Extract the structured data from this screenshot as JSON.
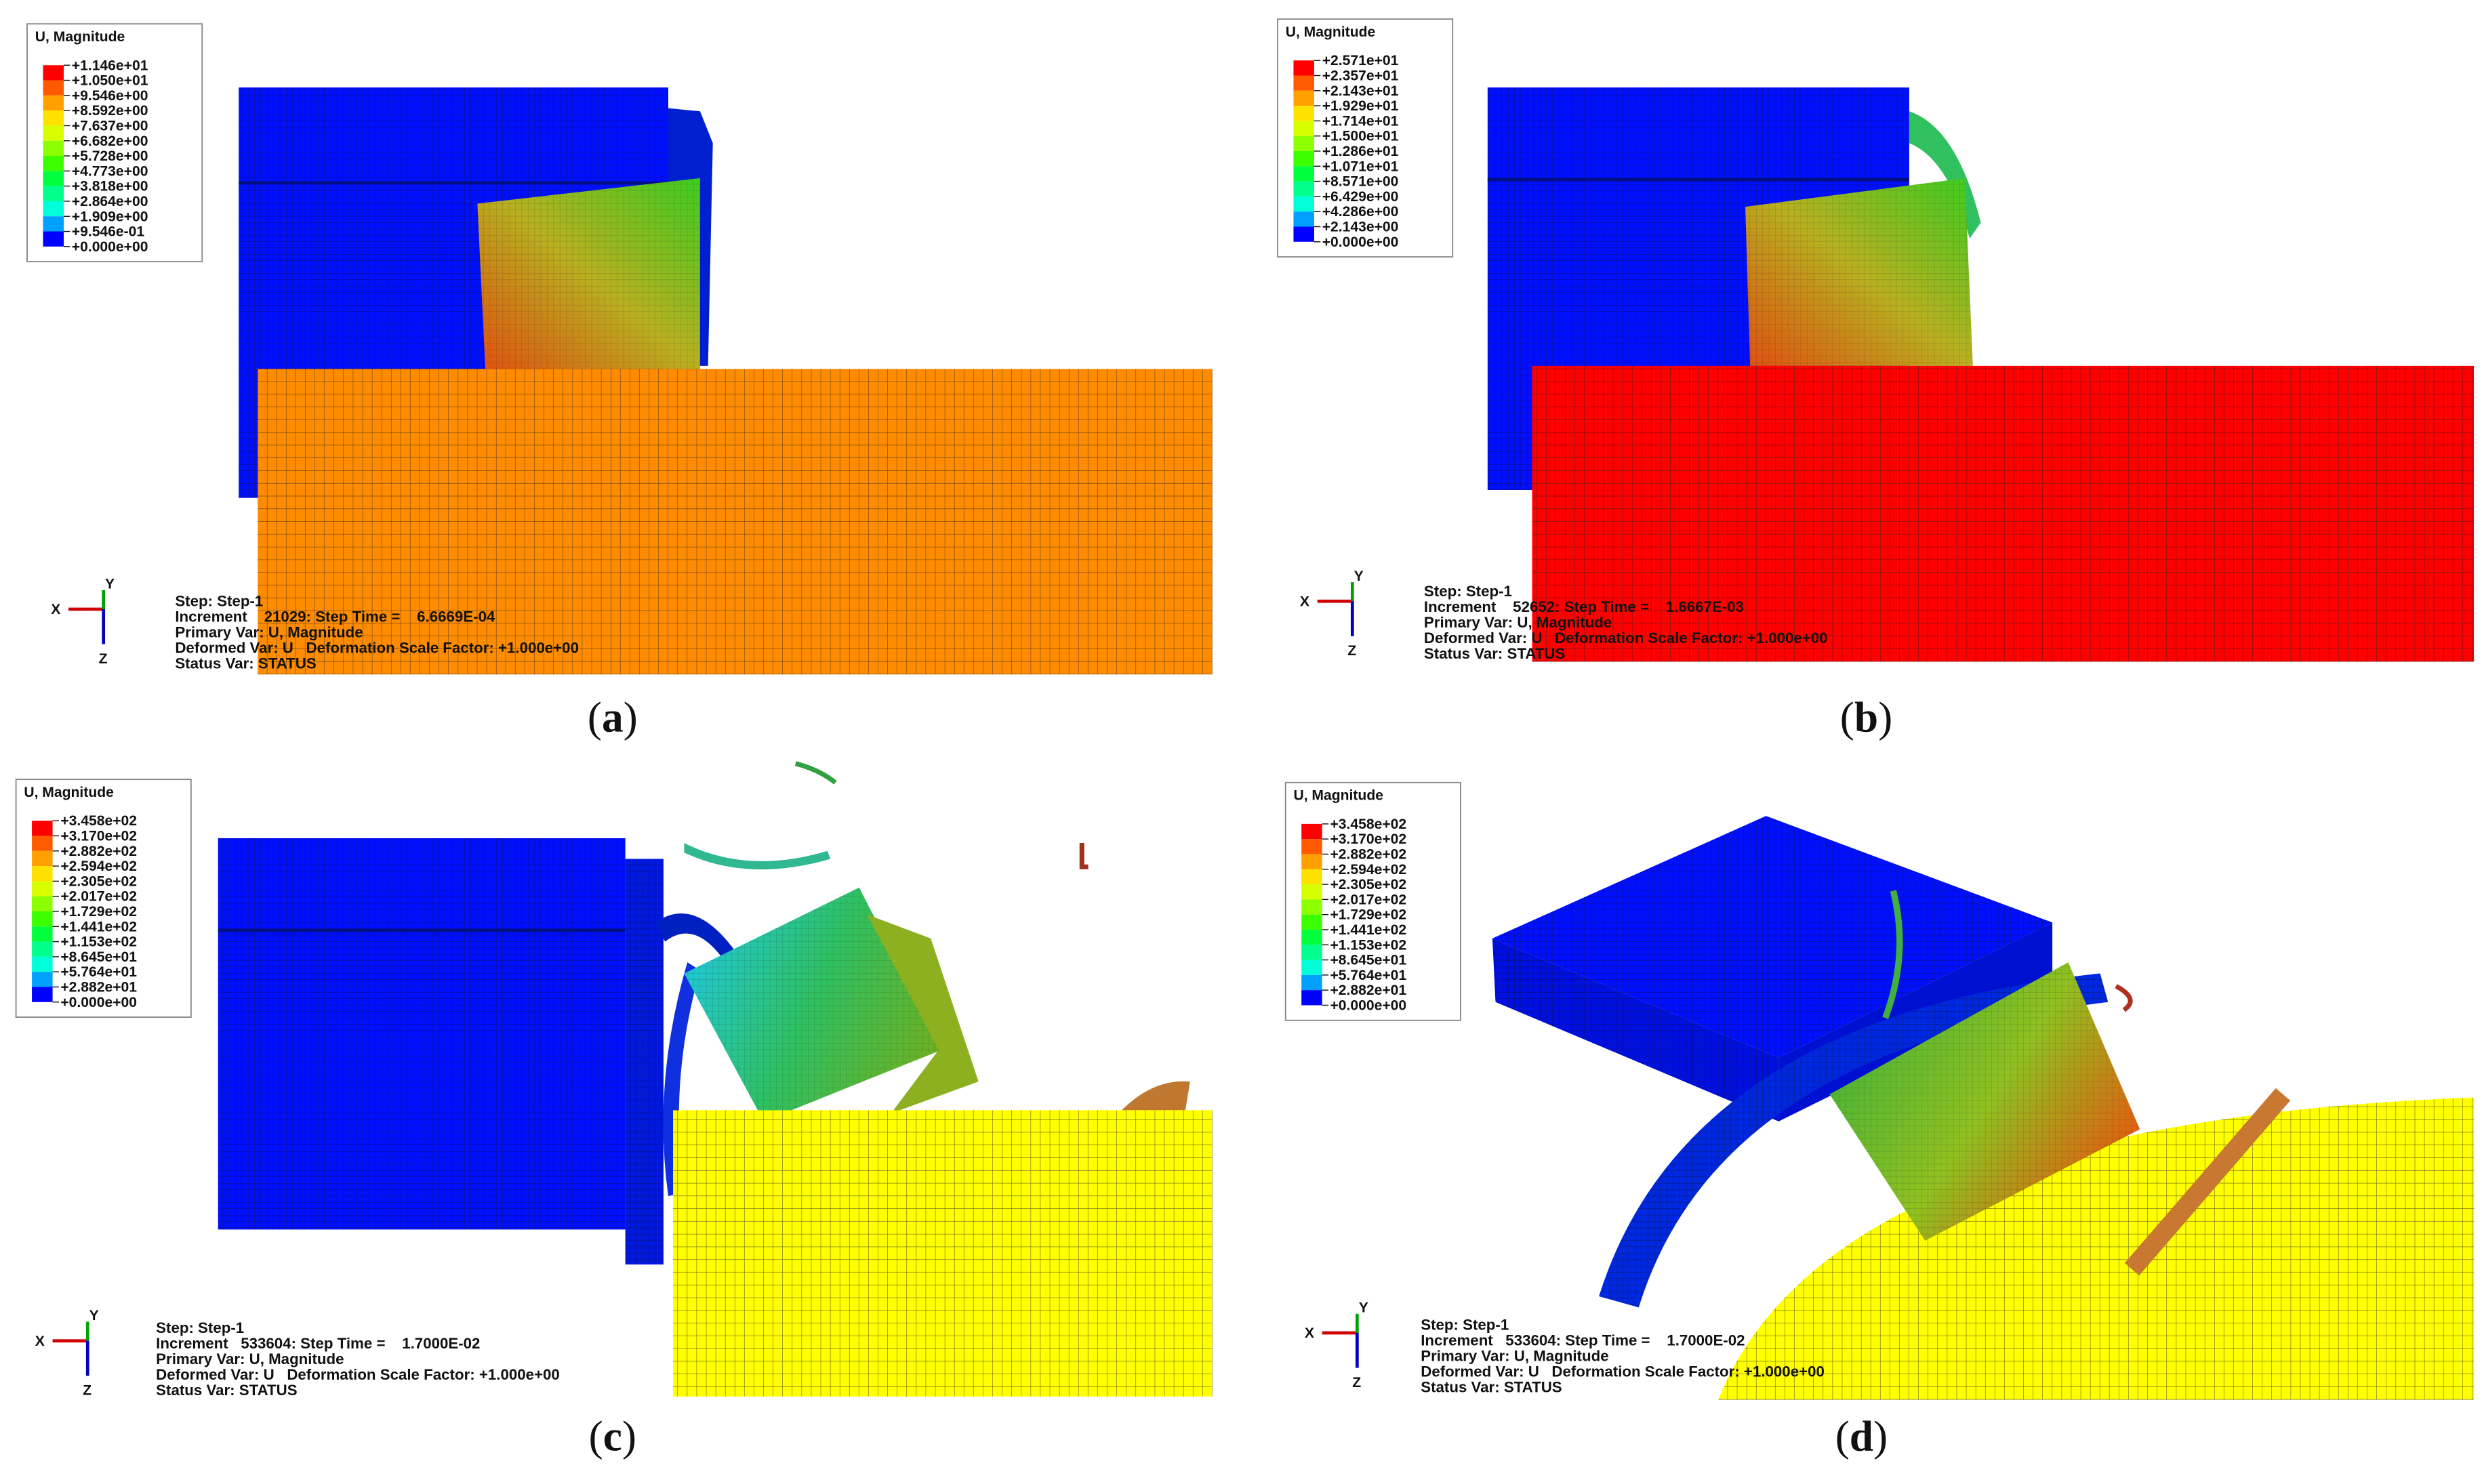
{
  "panels": [
    {
      "legend": {
        "title": "U, Magnitude",
        "values": [
          "+1.146e+01",
          "+1.050e+01",
          "+9.546e+00",
          "+8.592e+00",
          "+7.637e+00",
          "+6.682e+00",
          "+5.728e+00",
          "+4.773e+00",
          "+3.818e+00",
          "+2.864e+00",
          "+1.909e+00",
          "+9.546e-01",
          "+0.000e+00"
        ]
      },
      "triad": {
        "x": "X",
        "y": "Y",
        "z": "Z"
      },
      "info": [
        "Step: Step-1",
        "Increment    21029: Step Time =    6.6669E-04",
        "Primary Var: U, Magnitude",
        "Deformed Var: U   Deformation Scale Factor: +1.000e+00",
        "Status Var: STATUS"
      ],
      "caption": [
        "(",
        "a",
        ")"
      ]
    },
    {
      "legend": {
        "title": "U, Magnitude",
        "values": [
          "+2.571e+01",
          "+2.357e+01",
          "+2.143e+01",
          "+1.929e+01",
          "+1.714e+01",
          "+1.500e+01",
          "+1.286e+01",
          "+1.071e+01",
          "+8.571e+00",
          "+6.429e+00",
          "+4.286e+00",
          "+2.143e+00",
          "+0.000e+00"
        ]
      },
      "triad": {
        "x": "X",
        "y": "Y",
        "z": "Z"
      },
      "info": [
        "Step: Step-1",
        "Increment    52652: Step Time =    1.6667E-03",
        "Primary Var: U, Magnitude",
        "Deformed Var: U   Deformation Scale Factor: +1.000e+00",
        "Status Var: STATUS"
      ],
      "caption": [
        "(",
        "b",
        ")"
      ]
    },
    {
      "legend": {
        "title": "U, Magnitude",
        "values": [
          "+3.458e+02",
          "+3.170e+02",
          "+2.882e+02",
          "+2.594e+02",
          "+2.305e+02",
          "+2.017e+02",
          "+1.729e+02",
          "+1.441e+02",
          "+1.153e+02",
          "+8.645e+01",
          "+5.764e+01",
          "+2.882e+01",
          "+0.000e+00"
        ]
      },
      "triad": {
        "x": "X",
        "y": "Y",
        "z": "Z"
      },
      "info": [
        "Step: Step-1",
        "Increment   533604: Step Time =    1.7000E-02",
        "Primary Var: U, Magnitude",
        "Deformed Var: U   Deformation Scale Factor: +1.000e+00",
        "Status Var: STATUS"
      ],
      "caption": [
        "(",
        "c",
        ")"
      ]
    },
    {
      "legend": {
        "title": "U, Magnitude",
        "values": [
          "+3.458e+02",
          "+3.170e+02",
          "+2.882e+02",
          "+2.594e+02",
          "+2.305e+02",
          "+2.017e+02",
          "+1.729e+02",
          "+1.441e+02",
          "+1.153e+02",
          "+8.645e+01",
          "+5.764e+01",
          "+2.882e+01",
          "+0.000e+00"
        ]
      },
      "triad": {
        "x": "X",
        "y": "Y",
        "z": "Z"
      },
      "info": [
        "Step: Step-1",
        "Increment   533604: Step Time =    1.7000E-02",
        "Primary Var: U, Magnitude",
        "Deformed Var: U   Deformation Scale Factor: +1.000e+00",
        "Status Var: STATUS"
      ],
      "caption": [
        "(",
        "d",
        ")"
      ]
    }
  ]
}
